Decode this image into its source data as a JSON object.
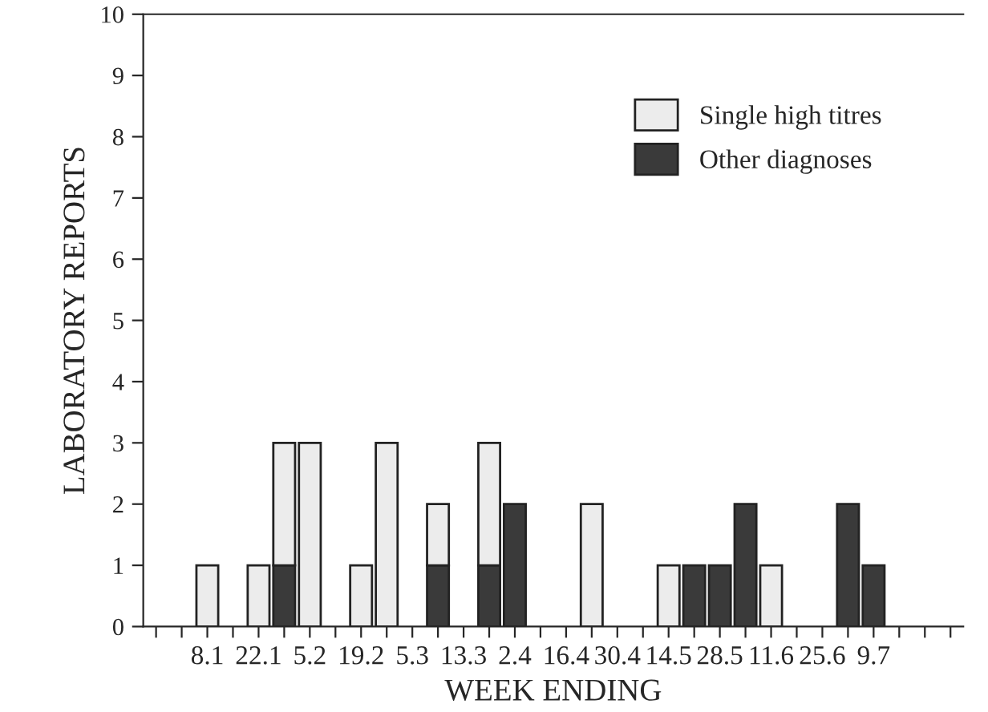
{
  "chart_data": {
    "type": "bar",
    "stacked": true,
    "xlabel": "WEEK ENDING",
    "ylabel": "LABORATORY REPORTS",
    "categories": [
      null,
      null,
      "8.1",
      null,
      "22.1",
      null,
      "5.2",
      null,
      "19.2",
      null,
      "5.3",
      null,
      "13.3",
      null,
      "2.4",
      null,
      "16.4",
      null,
      "30.4",
      null,
      "14.5",
      null,
      "28.5",
      null,
      "11.6",
      null,
      "25.6",
      null,
      "9.7",
      null,
      null,
      null
    ],
    "series": [
      {
        "name": "Other diagnoses",
        "color": "#3a3a3a",
        "values": [
          null,
          null,
          null,
          null,
          null,
          1,
          null,
          null,
          null,
          null,
          null,
          1,
          null,
          1,
          2,
          null,
          null,
          null,
          null,
          null,
          null,
          1,
          1,
          2,
          null,
          null,
          null,
          2,
          1,
          null,
          null,
          null
        ]
      },
      {
        "name": "Single high titres",
        "color": "#ececec",
        "values": [
          null,
          null,
          1,
          null,
          1,
          2,
          3,
          null,
          1,
          3,
          null,
          1,
          null,
          2,
          null,
          null,
          null,
          2,
          null,
          null,
          1,
          null,
          null,
          null,
          1,
          null,
          null,
          null,
          null,
          null,
          null,
          null
        ]
      }
    ],
    "ylim": [
      0,
      10
    ],
    "yticks": [
      0,
      1,
      2,
      3,
      4,
      5,
      6,
      7,
      8,
      9,
      10
    ],
    "grid": false,
    "legend": "top right"
  }
}
